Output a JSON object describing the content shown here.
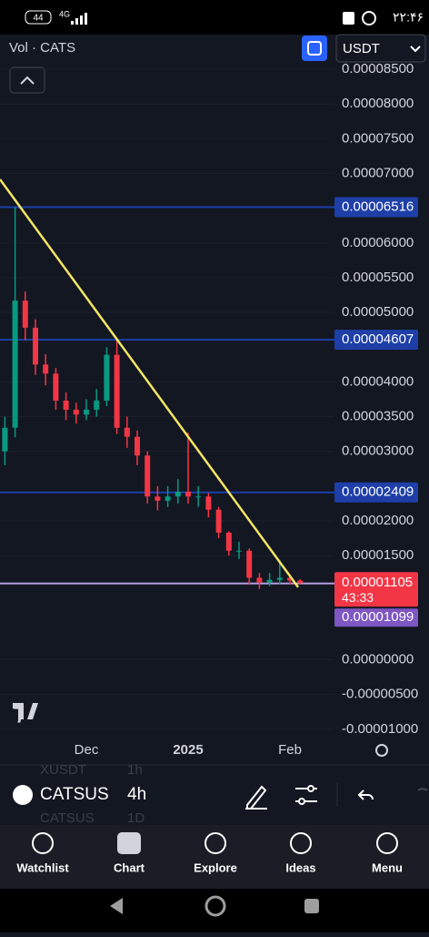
{
  "status_bar": {
    "battery": "44",
    "network": "4G",
    "time": "۲۲:۴۶"
  },
  "toolbar": {
    "indicator": "Vol · CATS",
    "currency": "USDT"
  },
  "chart_data": {
    "type": "candlestick",
    "categories": [
      null,
      null,
      null,
      null,
      null,
      null,
      null,
      null,
      "Dec",
      null,
      null,
      null,
      null,
      null,
      null,
      null,
      null,
      null,
      "2025",
      null,
      null,
      null,
      null,
      null,
      null,
      null,
      null,
      null,
      "Feb",
      null
    ],
    "open": [
      3e-05,
      3.34e-05,
      5.17e-05,
      4.78e-05,
      4.25e-05,
      4.12e-05,
      3.73e-05,
      3.6e-05,
      3.53e-05,
      3.6e-05,
      3.73e-05,
      4.39e-05,
      3.34e-05,
      3.21e-05,
      2.94e-05,
      2.35e-05,
      2.29e-05,
      2.35e-05,
      2.42e-05,
      2.35e-05,
      2.35e-05,
      2.16e-05,
      1.83e-05,
      1.57e-05,
      1.57e-05,
      1.18e-05,
      1.11e-05,
      1.15e-05,
      1.18e-05,
      1.14e-05
    ],
    "high": [
      3.5e-05,
      6.516e-05,
      5.3e-05,
      4.9e-05,
      4.4e-05,
      4.2e-05,
      3.85e-05,
      3.7e-05,
      3.75e-05,
      3.9e-05,
      4.5e-05,
      4.607e-05,
      3.5e-05,
      3.3e-05,
      3e-05,
      2.5e-05,
      2.5e-05,
      2.6e-05,
      3.27e-05,
      2.5e-05,
      2.4e-05,
      2.2e-05,
      1.85e-05,
      1.7e-05,
      1.6e-05,
      1.25e-05,
      1.25e-05,
      1.44e-05,
      1.23e-05,
      1.16e-05
    ],
    "low": [
      2.8e-05,
      3.2e-05,
      4.6e-05,
      4.1e-05,
      3.95e-05,
      3.6e-05,
      3.45e-05,
      3.4e-05,
      3.45e-05,
      3.5e-05,
      3.65e-05,
      3.25e-05,
      3.05e-05,
      2.8e-05,
      2.25e-05,
      2.15e-05,
      2.2e-05,
      2.25e-05,
      2.25e-05,
      2.2e-05,
      2.05e-05,
      1.75e-05,
      1.5e-05,
      1.45e-05,
      1.08e-05,
      1.02e-05,
      1.06e-05,
      1.09e-05,
      1.08e-05,
      1.09e-05
    ],
    "close": [
      3.34e-05,
      5.17e-05,
      4.78e-05,
      4.25e-05,
      4.12e-05,
      3.73e-05,
      3.6e-05,
      3.53e-05,
      3.6e-05,
      3.73e-05,
      4.39e-05,
      3.34e-05,
      3.21e-05,
      2.94e-05,
      2.35e-05,
      2.29e-05,
      2.35e-05,
      2.42e-05,
      2.35e-05,
      2.35e-05,
      2.16e-05,
      1.83e-05,
      1.57e-05,
      1.57e-05,
      1.18e-05,
      1.11e-05,
      1.15e-05,
      1.18e-05,
      1.14e-05,
      1.105e-05
    ],
    "up_color": "#089981",
    "down_color": "#f23645",
    "ylim": [
      -1.12e-05,
      8.58e-05
    ],
    "yticks": [
      {
        "value": 8.5e-05,
        "label": "0.00008500"
      },
      {
        "value": 8e-05,
        "label": "0.00008000"
      },
      {
        "value": 7.5e-05,
        "label": "0.00007500"
      },
      {
        "value": 7e-05,
        "label": "0.00007000"
      },
      {
        "value": 6e-05,
        "label": "0.00006000"
      },
      {
        "value": 5.5e-05,
        "label": "0.00005500"
      },
      {
        "value": 5e-05,
        "label": "0.00005000"
      },
      {
        "value": 4e-05,
        "label": "0.00004000"
      },
      {
        "value": 3.5e-05,
        "label": "0.00003500"
      },
      {
        "value": 3e-05,
        "label": "0.00003000"
      },
      {
        "value": 2e-05,
        "label": "0.00002000"
      },
      {
        "value": 1.5e-05,
        "label": "0.00001500"
      },
      {
        "value": 0,
        "label": "0.00000000"
      },
      {
        "value": -5e-06,
        "label": "-0.00000500"
      },
      {
        "value": -1e-05,
        "label": "-0.00001000"
      }
    ],
    "price_lines": [
      {
        "value": 6.516e-05,
        "color": "#1e3fa8"
      },
      {
        "value": 4.607e-05,
        "color": "#1e3fa8"
      },
      {
        "value": 2.409e-05,
        "color": "#1e3fa8"
      }
    ],
    "current_price": {
      "value": 1.105e-05,
      "countdown": "43:33",
      "color": "#f23645"
    },
    "bid_line": {
      "value": 1.099e-05,
      "color": "#7e57c2"
    },
    "trendline": {
      "start": 6.915e-05,
      "end": 1.045e-05,
      "color": "#f5e663"
    }
  },
  "symbol_bar": {
    "symbol": "CATSUS",
    "interval": "4h",
    "ghost_above": "XUSDT",
    "ghost_above_interval": "1h",
    "ghost_below": "CATSUS",
    "ghost_below_interval": "1D"
  },
  "nav": [
    "Watchlist",
    "Chart",
    "Explore",
    "Ideas",
    "Menu"
  ]
}
